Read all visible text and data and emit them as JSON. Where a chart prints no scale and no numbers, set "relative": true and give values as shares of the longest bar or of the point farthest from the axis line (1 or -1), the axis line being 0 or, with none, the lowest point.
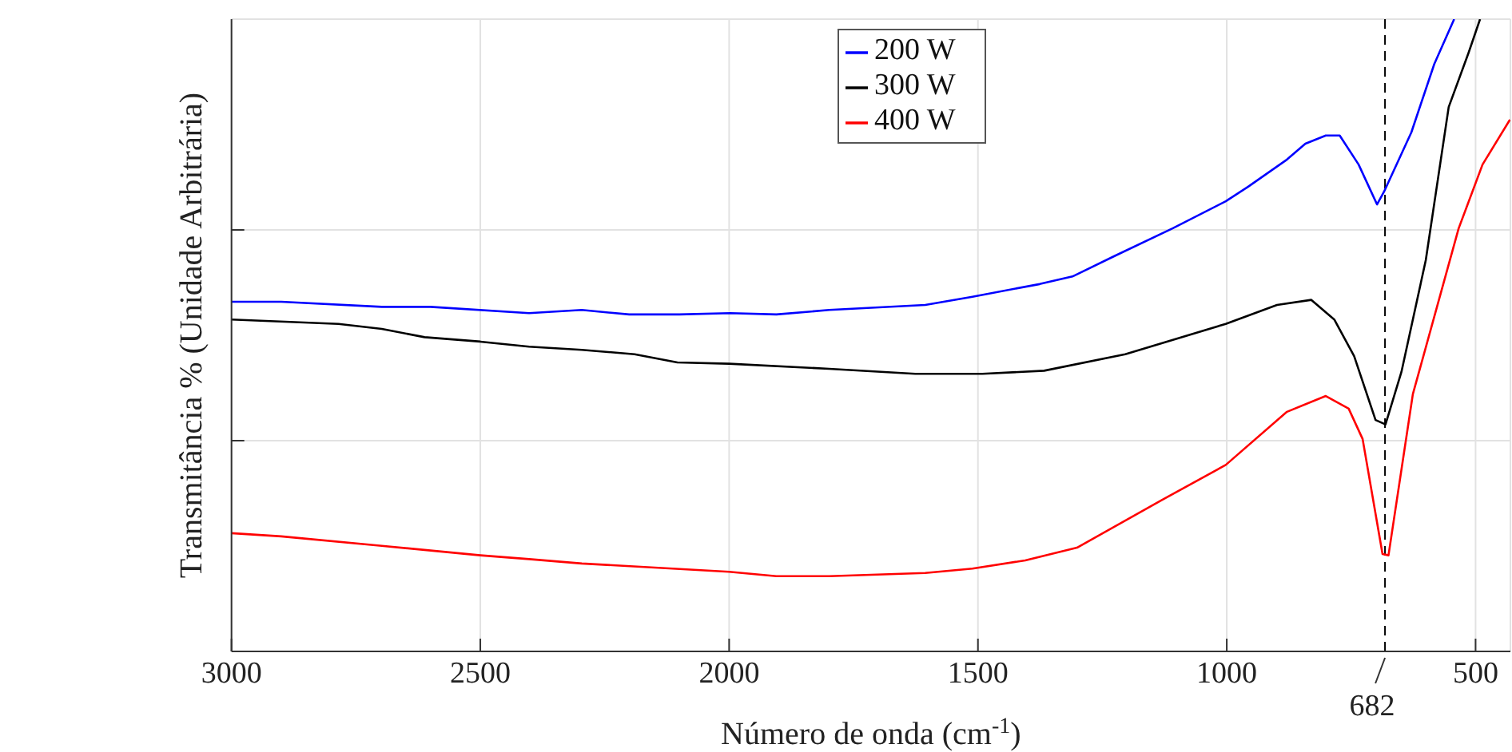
{
  "chart_data": {
    "type": "line",
    "xlabel": "Número de onda (cm$^{-1}$)",
    "ylabel": "Transmitância % (Unidade Arbitrária)",
    "relative": true,
    "xlim": [
      3000,
      430
    ],
    "xticks": [
      3000,
      2500,
      2000,
      1500,
      1000,
      500
    ],
    "tick_labels": "x",
    "grid": true,
    "legend": "top",
    "line_style": "solid",
    "marker": "none",
    "ref_lines": [
      {
        "axis": "x",
        "value": 682,
        "label": "682",
        "color": "#000000",
        "line_style": "dashed"
      }
    ],
    "series": [
      {
        "name": "200 W",
        "color": "#0000ff",
        "x": [
          3000,
          2900,
          2698,
          2600,
          2402,
          2296,
          2201,
          2100,
          1998,
          1905,
          1799,
          1606,
          1511,
          1376,
          1310,
          1224,
          1109,
          1002,
          957,
          879,
          842,
          801,
          773,
          735,
          698,
          684,
          629,
          583,
          543
        ],
        "values": [
          0.553,
          0.553,
          0.545,
          0.545,
          0.535,
          0.54,
          0.533,
          0.533,
          0.535,
          0.533,
          0.54,
          0.548,
          0.561,
          0.581,
          0.593,
          0.626,
          0.669,
          0.712,
          0.735,
          0.778,
          0.803,
          0.816,
          0.816,
          0.77,
          0.707,
          0.727,
          0.821,
          0.929,
          1
        ]
      },
      {
        "name": "300 W",
        "color": "#000000",
        "x": [
          3000,
          2785,
          2698,
          2612,
          2500,
          2402,
          2296,
          2190,
          2104,
          2000,
          1799,
          1626,
          1491,
          1367,
          1204,
          1002,
          899,
          830,
          784,
          744,
          701,
          681,
          649,
          600,
          554,
          514,
          491
        ],
        "values": [
          0.525,
          0.518,
          0.51,
          0.497,
          0.49,
          0.482,
          0.477,
          0.47,
          0.457,
          0.455,
          0.447,
          0.439,
          0.439,
          0.444,
          0.47,
          0.518,
          0.548,
          0.556,
          0.525,
          0.467,
          0.366,
          0.359,
          0.442,
          0.619,
          0.861,
          0.947,
          1
        ]
      },
      {
        "name": "400 W",
        "color": "#ff0000",
        "x": [
          3000,
          2900,
          2698,
          2500,
          2402,
          2296,
          2000,
          1905,
          1799,
          1606,
          1511,
          1405,
          1301,
          1129,
          1002,
          879,
          801,
          755,
          727,
          687,
          675,
          626,
          534,
          486,
          431
        ],
        "values": [
          0.187,
          0.182,
          0.167,
          0.152,
          0.146,
          0.139,
          0.126,
          0.119,
          0.119,
          0.124,
          0.131,
          0.144,
          0.164,
          0.24,
          0.295,
          0.379,
          0.404,
          0.384,
          0.336,
          0.154,
          0.152,
          0.407,
          0.669,
          0.77,
          0.841
        ]
      }
    ]
  }
}
